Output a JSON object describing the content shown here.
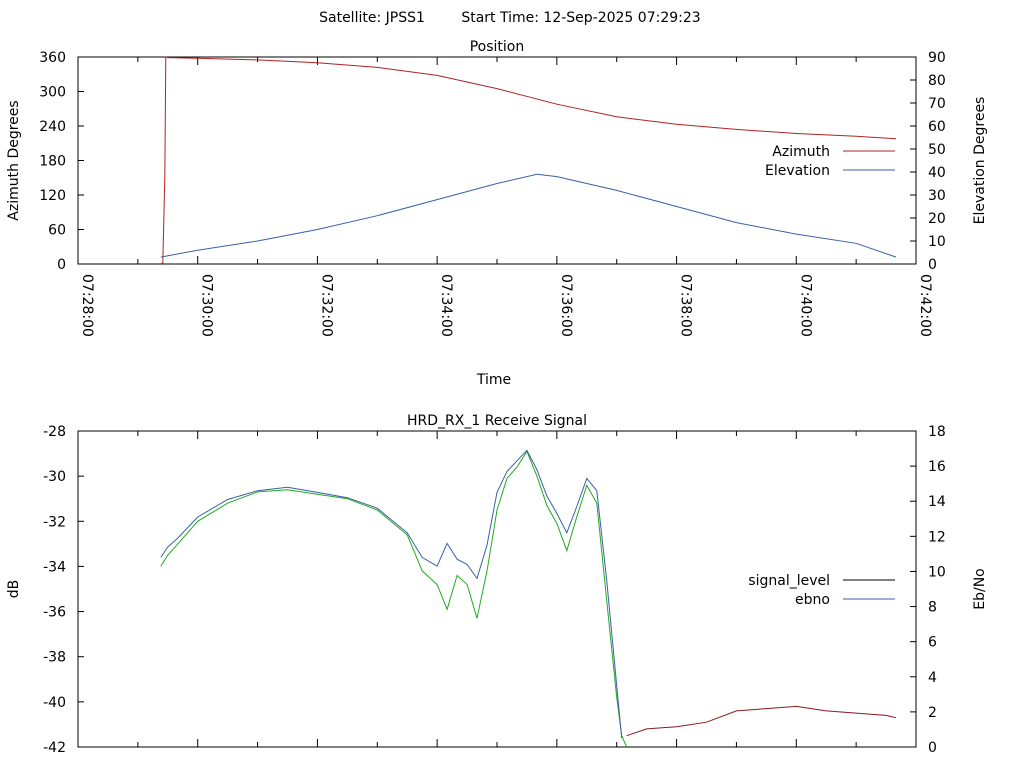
{
  "header": {
    "satellite_label": "Satellite: JPSS1",
    "start_time_label": "Start Time: 12-Sep-2025 07:29:23"
  },
  "chart_data": [
    {
      "type": "line",
      "title": "Position",
      "xlabel": "Time",
      "ylabel_left": "Azimuth Degrees",
      "ylabel_right": "Elevation Degrees",
      "x_ticks": [
        "07:28:00",
        "07:30:00",
        "07:32:00",
        "07:34:00",
        "07:36:00",
        "07:38:00",
        "07:40:00",
        "07:42:00"
      ],
      "xlim": [
        "07:28:00",
        "07:42:00"
      ],
      "y_left_ticks": [
        "0",
        "60",
        "120",
        "180",
        "240",
        "300",
        "360"
      ],
      "y_left_lim": [
        0,
        360
      ],
      "y_right_ticks": [
        "0",
        "10",
        "20",
        "30",
        "40",
        "50",
        "60",
        "70",
        "80",
        "90"
      ],
      "y_right_lim": [
        0,
        90
      ],
      "legend_position": "right-middle",
      "series": [
        {
          "name": "Azimuth",
          "axis": "left",
          "color": "#b22222",
          "x": [
            "07:29:23",
            "07:29:25",
            "07:29:27",
            "07:29:28",
            "07:29:30",
            "07:30:00",
            "07:31:00",
            "07:32:00",
            "07:33:00",
            "07:34:00",
            "07:35:00",
            "07:36:00",
            "07:37:00",
            "07:38:00",
            "07:39:00",
            "07:40:00",
            "07:41:00",
            "07:41:40"
          ],
          "values": [
            0,
            2,
            150,
            360,
            359,
            358,
            355,
            350,
            342,
            328,
            305,
            278,
            256,
            243,
            234,
            227,
            222,
            218
          ]
        },
        {
          "name": "Elevation",
          "axis": "right",
          "color": "#3a5fa8",
          "x": [
            "07:29:23",
            "07:30:00",
            "07:31:00",
            "07:32:00",
            "07:33:00",
            "07:34:00",
            "07:35:00",
            "07:35:40",
            "07:36:00",
            "07:37:00",
            "07:38:00",
            "07:39:00",
            "07:40:00",
            "07:41:00",
            "07:41:40"
          ],
          "values": [
            3,
            6,
            10,
            15,
            21,
            28,
            35,
            39,
            38,
            32,
            25,
            18,
            13,
            9,
            3
          ]
        }
      ]
    },
    {
      "type": "line",
      "title": "HRD_RX_1 Receive Signal",
      "xlabel": "",
      "ylabel_left": "dB",
      "ylabel_right": "Eb/No",
      "xlim": [
        "07:28:00",
        "07:42:00"
      ],
      "y_left_ticks": [
        "-42",
        "-40",
        "-38",
        "-36",
        "-34",
        "-32",
        "-30",
        "-28"
      ],
      "y_left_lim": [
        -42,
        -28
      ],
      "y_right_ticks": [
        "0",
        "2",
        "4",
        "6",
        "8",
        "10",
        "12",
        "14",
        "16",
        "18"
      ],
      "y_right_lim": [
        0,
        18
      ],
      "legend_position": "right-middle",
      "series": [
        {
          "name": "signal_level",
          "axis": "left",
          "color": "#000000",
          "segments": [
            {
              "color": "#22aa22",
              "x": [
                "07:29:23",
                "07:29:30",
                "07:29:40",
                "07:30:00",
                "07:30:30",
                "07:31:00",
                "07:31:30",
                "07:32:00",
                "07:32:30",
                "07:33:00",
                "07:33:30",
                "07:33:45",
                "07:34:00",
                "07:34:10",
                "07:34:20",
                "07:34:30",
                "07:34:40",
                "07:34:50",
                "07:35:00",
                "07:35:10",
                "07:35:20",
                "07:35:30",
                "07:35:40",
                "07:35:50",
                "07:36:00",
                "07:36:10",
                "07:36:20",
                "07:36:30",
                "07:36:40",
                "07:36:50",
                "07:37:00",
                "07:37:05",
                "07:37:10"
              ],
              "values": [
                -34.0,
                -33.5,
                -33.0,
                -32.0,
                -31.2,
                -30.7,
                -30.6,
                -30.8,
                -31.0,
                -31.5,
                -32.6,
                -34.2,
                -34.8,
                -35.9,
                -34.4,
                -34.8,
                -36.3,
                -34.2,
                -31.5,
                -30.1,
                -29.6,
                -28.9,
                -30.0,
                -31.3,
                -32.1,
                -33.3,
                -31.8,
                -30.4,
                -31.2,
                -35.5,
                -39.8,
                -41.5,
                -42.0
              ]
            },
            {
              "color": "#8b1a1a",
              "x": [
                "07:37:10",
                "07:37:30",
                "07:38:00",
                "07:38:30",
                "07:39:00",
                "07:39:30",
                "07:40:00",
                "07:40:30",
                "07:41:00",
                "07:41:30",
                "07:41:40"
              ],
              "values": [
                -41.5,
                -41.2,
                -41.1,
                -40.9,
                -40.4,
                -40.3,
                -40.2,
                -40.4,
                -40.5,
                -40.6,
                -40.7
              ]
            }
          ]
        },
        {
          "name": "ebno",
          "axis": "right",
          "color": "#3a5fa8",
          "x": [
            "07:29:23",
            "07:29:30",
            "07:29:40",
            "07:30:00",
            "07:30:30",
            "07:31:00",
            "07:31:30",
            "07:32:00",
            "07:32:30",
            "07:33:00",
            "07:33:30",
            "07:33:45",
            "07:34:00",
            "07:34:10",
            "07:34:20",
            "07:34:30",
            "07:34:40",
            "07:34:50",
            "07:35:00",
            "07:35:10",
            "07:35:20",
            "07:35:30",
            "07:35:40",
            "07:35:50",
            "07:36:00",
            "07:36:10",
            "07:36:20",
            "07:36:30",
            "07:36:40",
            "07:36:50",
            "07:37:00",
            "07:37:05"
          ],
          "values": [
            10.8,
            11.4,
            11.9,
            13.1,
            14.1,
            14.6,
            14.8,
            14.5,
            14.2,
            13.6,
            12.2,
            10.8,
            10.3,
            11.6,
            10.7,
            10.4,
            9.6,
            11.5,
            14.5,
            15.7,
            16.3,
            16.9,
            15.8,
            14.3,
            13.3,
            12.2,
            13.7,
            15.3,
            14.6,
            9.5,
            3.5,
            0.5
          ]
        }
      ]
    }
  ]
}
